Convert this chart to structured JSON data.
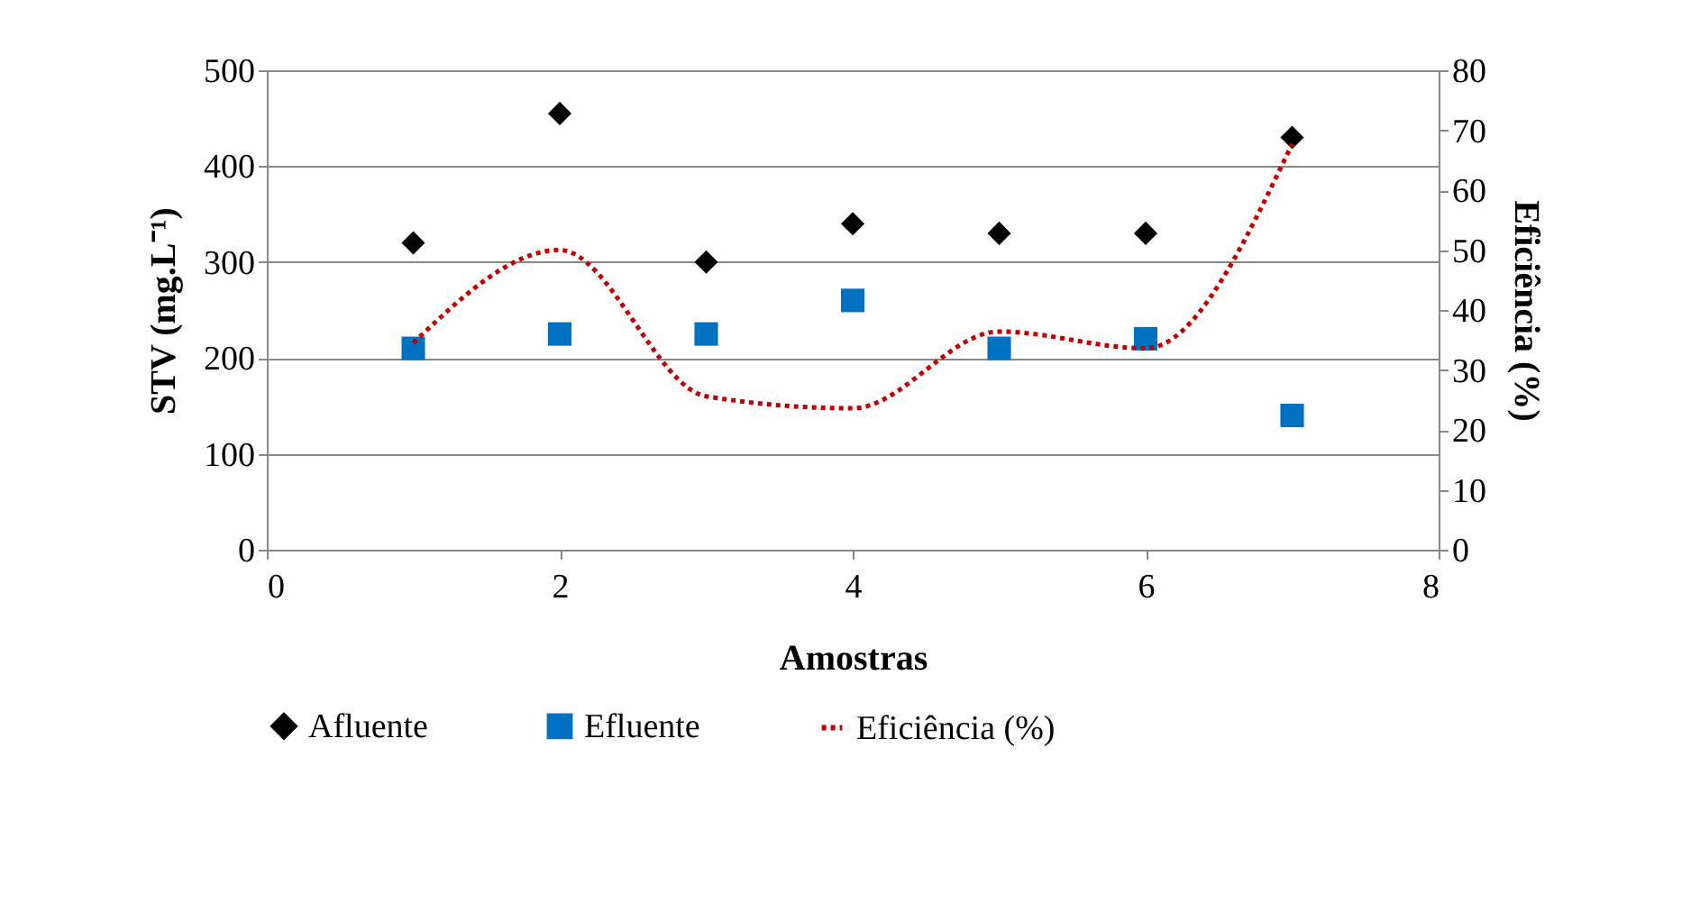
{
  "chart_data": {
    "type": "scatter",
    "xlabel": "Amostras",
    "ylabel": "STV (mg.L⁻¹)",
    "y2label": "Eficiência (%)",
    "x": [
      1,
      2,
      3,
      4,
      5,
      6,
      7
    ],
    "series": [
      {
        "name": "Afluente",
        "marker": "diamond",
        "color": "#000000",
        "values": [
          320,
          455,
          300,
          340,
          330,
          330,
          430
        ]
      },
      {
        "name": "Efluente",
        "marker": "square",
        "color": "#0070c0",
        "values": [
          210,
          225,
          225,
          260,
          210,
          220,
          140
        ]
      },
      {
        "name": "Eficiência (%)",
        "type": "line",
        "axis": "y2",
        "marker": "none",
        "line_style": "dotted",
        "color": "#c00000",
        "values": [
          34.5,
          50,
          25.6,
          23.6,
          36.4,
          33.6,
          67.7
        ]
      }
    ],
    "xlim": [
      0,
      8
    ],
    "xticks": [
      0,
      2,
      4,
      6,
      8
    ],
    "ylim": [
      0,
      500
    ],
    "yticks": [
      0,
      100,
      200,
      300,
      400,
      500
    ],
    "y2lim": [
      0,
      80
    ],
    "y2ticks": [
      0,
      10,
      20,
      30,
      40,
      50,
      60,
      70,
      80
    ],
    "grid": "y",
    "legend": "bottom"
  }
}
